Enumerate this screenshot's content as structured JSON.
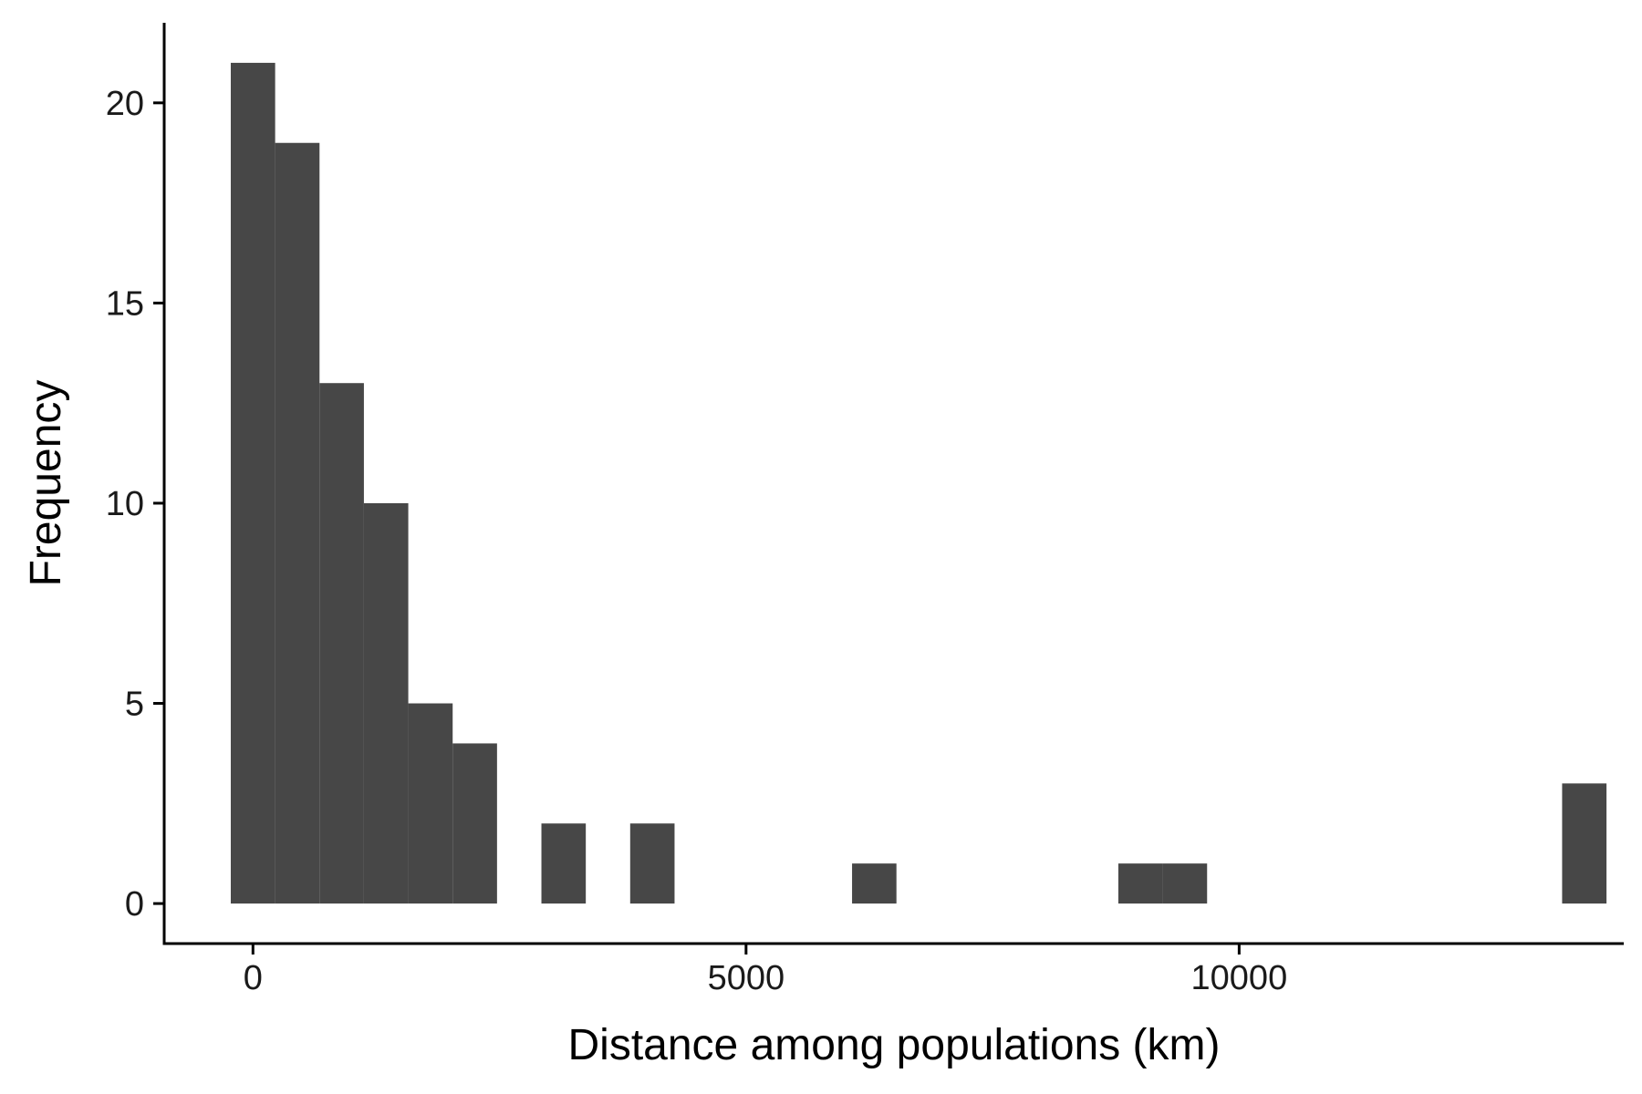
{
  "chart_data": {
    "type": "bar",
    "subtype": "histogram",
    "title": "",
    "xlabel": "Distance among populations (km)",
    "ylabel": "Frequency",
    "bar_color": "#474747",
    "grid": false,
    "legend": "none",
    "xlim": [
      -900,
      13900
    ],
    "ylim": [
      -1.0,
      22.0
    ],
    "x_ticks": [
      0,
      5000,
      10000
    ],
    "x_tick_labels": [
      "0",
      "5000",
      "10000"
    ],
    "y_ticks": [
      0,
      5,
      10,
      15,
      20
    ],
    "y_tick_labels": [
      "0",
      "5",
      "10",
      "15",
      "20"
    ],
    "bin_width": 450,
    "bins": [
      {
        "x_start": -225,
        "x_end": 225,
        "count": 21
      },
      {
        "x_start": 225,
        "x_end": 675,
        "count": 19
      },
      {
        "x_start": 675,
        "x_end": 1125,
        "count": 13
      },
      {
        "x_start": 1125,
        "x_end": 1575,
        "count": 10
      },
      {
        "x_start": 1575,
        "x_end": 2025,
        "count": 5
      },
      {
        "x_start": 2025,
        "x_end": 2475,
        "count": 4
      },
      {
        "x_start": 2475,
        "x_end": 2925,
        "count": 0
      },
      {
        "x_start": 2925,
        "x_end": 3375,
        "count": 2
      },
      {
        "x_start": 3375,
        "x_end": 3825,
        "count": 0
      },
      {
        "x_start": 3825,
        "x_end": 4275,
        "count": 2
      },
      {
        "x_start": 6075,
        "x_end": 6525,
        "count": 1
      },
      {
        "x_start": 8775,
        "x_end": 9225,
        "count": 1
      },
      {
        "x_start": 9225,
        "x_end": 9675,
        "count": 1
      },
      {
        "x_start": 13275,
        "x_end": 13725,
        "count": 3
      }
    ]
  }
}
